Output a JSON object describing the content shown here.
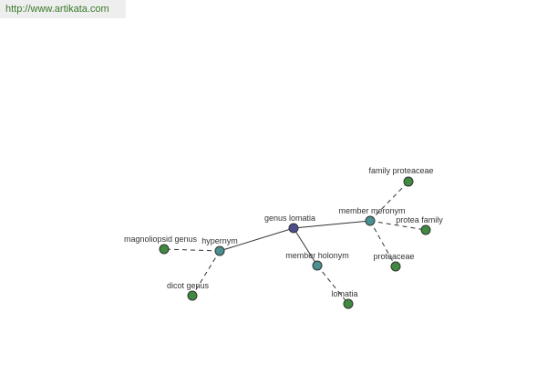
{
  "header": {
    "url": "http://www.artikata.com"
  },
  "nodes": [
    {
      "label": "genus lomatia"
    },
    {
      "label": "hypernym"
    },
    {
      "label": "member meronym"
    },
    {
      "label": "member holonym"
    },
    {
      "label": "magnoliopsid genus"
    },
    {
      "label": "dicot genus"
    },
    {
      "label": "family proteaceae"
    },
    {
      "label": "protea family"
    },
    {
      "label": "proteaceae"
    },
    {
      "label": "lomatia"
    }
  ]
}
